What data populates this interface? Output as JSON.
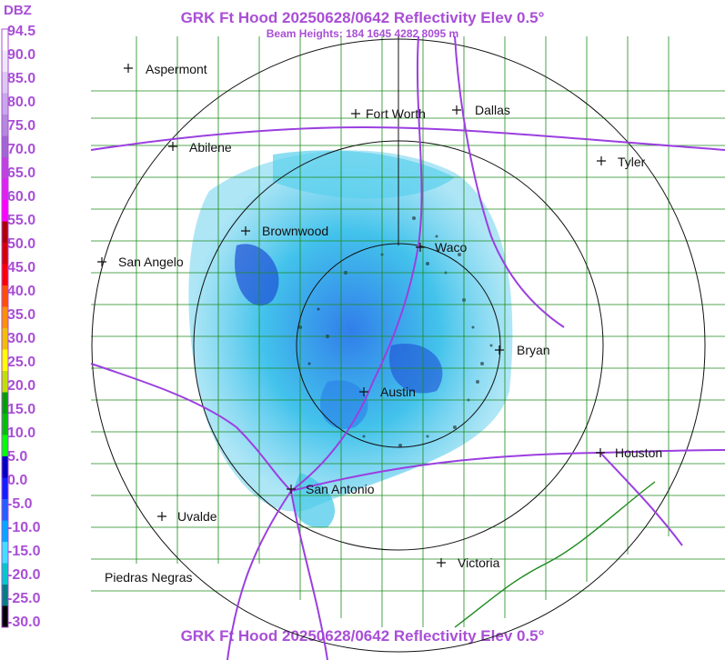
{
  "header": {
    "title": "GRK Ft Hood 20250628/0642 Reflectivity Elev 0.5°",
    "subtitle": "Beam Heights: 184 1645 4282 8095 m"
  },
  "footer": {
    "title": "GRK Ft Hood 20250628/0642 Reflectivity Elev 0.5°"
  },
  "legend": {
    "label": "DBZ",
    "ticks": [
      "94.5",
      "90.0",
      "85.0",
      "80.0",
      "75.0",
      "70.0",
      "65.0",
      "60.0",
      "55.0",
      "50.0",
      "45.0",
      "40.0",
      "35.0",
      "30.0",
      "25.0",
      "20.0",
      "15.0",
      "10.0",
      "5.0",
      "0.0",
      "-5.0",
      "-10.0",
      "-15.0",
      "-20.0",
      "-25.0",
      "-30.0"
    ],
    "swatches": [
      "#ffffff",
      "#f0e8fa",
      "#dcc8f0",
      "#c8a8e8",
      "#b488dc",
      "#a066d0",
      "#c040e0",
      "#e020f0",
      "#ff00ff",
      "#b00000",
      "#d40000",
      "#ff0000",
      "#ff5000",
      "#ff9000",
      "#f0c000",
      "#ffff00",
      "#c0e000",
      "#00a000",
      "#00c000",
      "#00ff00",
      "#0000c0",
      "#1020ff",
      "#2060ff",
      "#00a8ff",
      "#40e0ff",
      "#00c8c8",
      "#008080",
      "#000000"
    ]
  },
  "cities": [
    {
      "name": "Aspermont"
    },
    {
      "name": "Abilene"
    },
    {
      "name": "Fort Worth"
    },
    {
      "name": "Dallas"
    },
    {
      "name": "Tyler"
    },
    {
      "name": "Brownwood"
    },
    {
      "name": "Waco"
    },
    {
      "name": "San Angelo"
    },
    {
      "name": "Bryan"
    },
    {
      "name": "Austin"
    },
    {
      "name": "Houston"
    },
    {
      "name": "San Antonio"
    },
    {
      "name": "Uvalde"
    },
    {
      "name": "Victoria"
    },
    {
      "name": "Piedras Negras"
    }
  ]
}
